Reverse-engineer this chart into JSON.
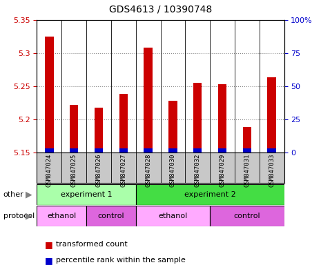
{
  "title": "GDS4613 / 10390748",
  "samples": [
    "GSM847024",
    "GSM847025",
    "GSM847026",
    "GSM847027",
    "GSM847028",
    "GSM847030",
    "GSM847032",
    "GSM847029",
    "GSM847031",
    "GSM847033"
  ],
  "transformed_count": [
    5.325,
    5.222,
    5.217,
    5.238,
    5.308,
    5.228,
    5.255,
    5.253,
    5.188,
    5.263
  ],
  "percentile_values": [
    3,
    3,
    3,
    3,
    3,
    3,
    3,
    3,
    3,
    3
  ],
  "ylim_left": [
    5.15,
    5.35
  ],
  "ylim_right": [
    0,
    100
  ],
  "yticks_left": [
    5.15,
    5.2,
    5.25,
    5.3,
    5.35
  ],
  "yticks_right": [
    0,
    25,
    50,
    75,
    100
  ],
  "bar_bottom": 5.15,
  "bar_width": 0.35,
  "red_color": "#CC0000",
  "blue_color": "#0000CC",
  "other_row": [
    {
      "label": "experiment 1",
      "start": 0,
      "end": 4,
      "color": "#AAFFAA"
    },
    {
      "label": "experiment 2",
      "start": 4,
      "end": 10,
      "color": "#44DD44"
    }
  ],
  "protocol_row": [
    {
      "label": "ethanol",
      "start": 0,
      "end": 2,
      "color": "#FFAAFF"
    },
    {
      "label": "control",
      "start": 2,
      "end": 4,
      "color": "#DD66DD"
    },
    {
      "label": "ethanol",
      "start": 4,
      "end": 7,
      "color": "#FFAAFF"
    },
    {
      "label": "control",
      "start": 7,
      "end": 10,
      "color": "#DD66DD"
    }
  ],
  "left_label_color": "#CC0000",
  "right_label_color": "#0000CC",
  "grid_color": "#888888",
  "tick_bg_color": "#C8C8C8",
  "label_fontsize": 8,
  "title_fontsize": 10,
  "ytick_fontsize": 8
}
